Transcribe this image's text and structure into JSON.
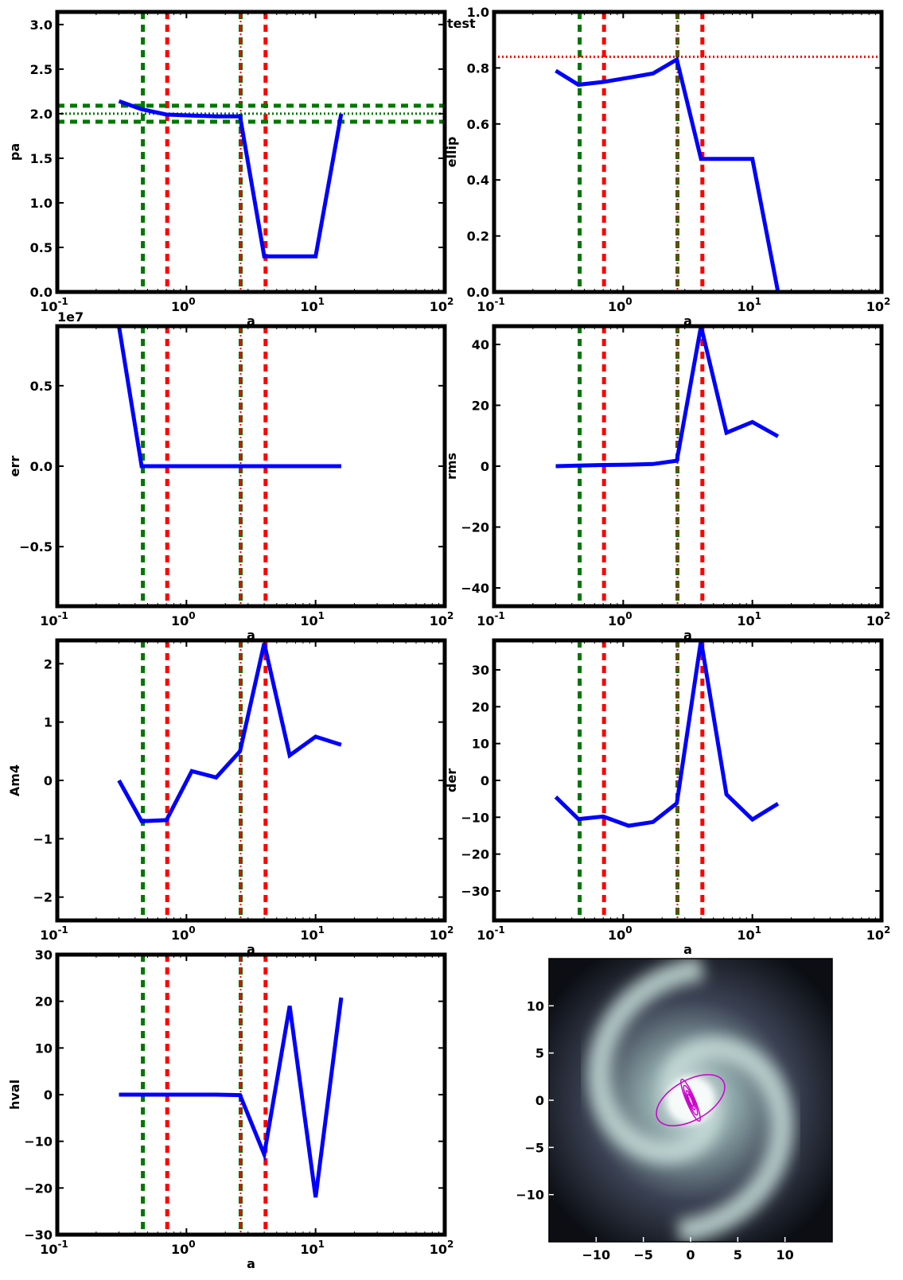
{
  "figure_label": "test",
  "colors": {
    "series": "#0000ff",
    "green_marker": "#007700",
    "red_marker": "#ff0000",
    "ellipse": "#cc00cc",
    "axes": "#000000"
  },
  "chart_data": [
    {
      "id": "pa",
      "type": "line",
      "xscale": "log",
      "xlim": [
        0.1,
        100
      ],
      "ylabel": "pa",
      "xlabel": "a",
      "ylim": [
        0,
        3.14159
      ],
      "yticks": [
        0.0,
        0.5,
        1.0,
        1.5,
        2.0,
        2.5,
        3.0
      ],
      "ytick_labels": [
        "0.0",
        "0.5",
        "1.0",
        "1.5",
        "2.0",
        "2.5",
        "3.0"
      ],
      "x": [
        0.3,
        0.45,
        0.7,
        1.1,
        1.7,
        2.6,
        4.0,
        6.3,
        10.0,
        15.8
      ],
      "y": [
        2.14,
        2.05,
        1.99,
        1.98,
        1.97,
        1.97,
        0.4,
        0.4,
        0.4,
        2.0
      ],
      "hlines": [
        {
          "y": 2.09,
          "color": "green",
          "style": "dashed"
        },
        {
          "y": 1.91,
          "color": "green",
          "style": "dashed"
        },
        {
          "y": 2.0,
          "color": "green",
          "style": "dotted"
        }
      ]
    },
    {
      "id": "ellip",
      "type": "line",
      "xscale": "log",
      "xlim": [
        0.1,
        100
      ],
      "ylabel": "ellip",
      "xlabel": "a",
      "ylim": [
        0,
        1.0
      ],
      "yticks": [
        0.0,
        0.2,
        0.4,
        0.6,
        0.8,
        1.0
      ],
      "ytick_labels": [
        "0.0",
        "0.2",
        "0.4",
        "0.6",
        "0.8",
        "1.0"
      ],
      "x": [
        0.3,
        0.45,
        0.7,
        1.1,
        1.7,
        2.6,
        4.0,
        6.3,
        10.0,
        15.8
      ],
      "y": [
        0.79,
        0.74,
        0.75,
        0.765,
        0.78,
        0.83,
        0.475,
        0.475,
        0.475,
        0.0
      ],
      "hlines": [
        {
          "y": 0.84,
          "color": "red",
          "style": "dotted"
        }
      ]
    },
    {
      "id": "err",
      "type": "line",
      "xscale": "log",
      "xlim": [
        0.1,
        100
      ],
      "ylabel": "err",
      "xlabel": "a",
      "ylim": [
        -0.87,
        0.87
      ],
      "y_offset_label": "1e7",
      "yticks": [
        -0.5,
        0.0,
        0.5
      ],
      "ytick_labels": [
        "−0.5",
        "0.0",
        "0.5"
      ],
      "x": [
        0.3,
        0.45,
        0.7,
        1.1,
        1.7,
        2.6,
        4.0,
        6.3,
        10.0,
        15.8
      ],
      "y": [
        0.87,
        0.0,
        0.0,
        0.0,
        0.0,
        0.0,
        0.0,
        0.0,
        0.0,
        0.0
      ],
      "hlines": []
    },
    {
      "id": "rms",
      "type": "line",
      "xscale": "log",
      "xlim": [
        0.1,
        100
      ],
      "ylabel": "rms",
      "xlabel": "a",
      "ylim": [
        -46,
        46
      ],
      "yticks": [
        -40,
        -20,
        0,
        20,
        40
      ],
      "ytick_labels": [
        "−40",
        "−20",
        "0",
        "20",
        "40"
      ],
      "x": [
        0.3,
        0.45,
        0.7,
        1.1,
        1.7,
        2.6,
        4.0,
        6.3,
        10.0,
        15.8
      ],
      "y": [
        0.0,
        0.2,
        0.4,
        0.5,
        0.7,
        1.8,
        46.0,
        11.0,
        14.5,
        9.8
      ],
      "hlines": []
    },
    {
      "id": "Am4",
      "type": "line",
      "xscale": "log",
      "xlim": [
        0.1,
        100
      ],
      "ylabel": "Am4",
      "xlabel": "a",
      "ylim": [
        -2.4,
        2.4
      ],
      "yticks": [
        -2,
        -1,
        0,
        1,
        2
      ],
      "ytick_labels": [
        "−2",
        "−1",
        "0",
        "1",
        "2"
      ],
      "x": [
        0.3,
        0.45,
        0.7,
        1.1,
        1.7,
        2.6,
        4.0,
        6.3,
        10.0,
        15.8
      ],
      "y": [
        0.0,
        -0.7,
        -0.68,
        0.16,
        0.05,
        0.5,
        2.35,
        0.43,
        0.75,
        0.61
      ],
      "hlines": []
    },
    {
      "id": "der",
      "type": "line",
      "xscale": "log",
      "xlim": [
        0.1,
        100
      ],
      "ylabel": "der",
      "xlabel": "a",
      "ylim": [
        -38,
        38
      ],
      "yticks": [
        -30,
        -20,
        -10,
        0,
        10,
        20,
        30
      ],
      "ytick_labels": [
        "−30",
        "−20",
        "−10",
        "0",
        "10",
        "20",
        "30"
      ],
      "x": [
        0.3,
        0.45,
        0.7,
        1.1,
        1.7,
        2.6,
        4.0,
        6.3,
        10.0,
        15.8
      ],
      "y": [
        -4.5,
        -10.5,
        -9.8,
        -12.3,
        -11.3,
        -6.2,
        38.0,
        -3.8,
        -10.6,
        -6.3
      ],
      "hlines": []
    },
    {
      "id": "hval",
      "type": "line",
      "xscale": "log",
      "xlim": [
        0.1,
        100
      ],
      "ylabel": "hval",
      "xlabel": "a",
      "ylim": [
        -30,
        30
      ],
      "yticks": [
        -30,
        -20,
        -10,
        0,
        10,
        20,
        30
      ],
      "ytick_labels": [
        "−30",
        "−20",
        "−10",
        "0",
        "10",
        "20",
        "30"
      ],
      "x": [
        0.3,
        0.45,
        0.7,
        1.1,
        1.7,
        2.6,
        4.0,
        6.3,
        10.0,
        15.8
      ],
      "y": [
        0.0,
        0.0,
        0.0,
        0.0,
        0.0,
        -0.1,
        -12.8,
        19.0,
        -22.0,
        20.8
      ],
      "hlines": []
    }
  ],
  "vlines": [
    {
      "x": 0.46,
      "color": "green",
      "style": "dashed"
    },
    {
      "x": 0.71,
      "color": "red",
      "style": "dashed"
    },
    {
      "x": 2.63,
      "color": "green",
      "style": "dashed"
    },
    {
      "x": 2.63,
      "color": "red",
      "style": "dashdot"
    },
    {
      "x": 4.1,
      "color": "red",
      "style": "dashed"
    }
  ],
  "xtick_labels": [
    "10",
    "10",
    "10",
    "10"
  ],
  "xtick_exponents": [
    "-1",
    "0",
    "1",
    "2"
  ],
  "image_panel": {
    "type": "heatmap",
    "xlim": [
      -15,
      15
    ],
    "ylim": [
      -15,
      15
    ],
    "xticks": [
      -10,
      -5,
      0,
      5,
      10
    ],
    "xtick_labels": [
      "−10",
      "−5",
      "0",
      "5",
      "10"
    ],
    "yticks": [
      -10,
      -5,
      0,
      5,
      10
    ],
    "ytick_labels": [
      "−10",
      "−5",
      "0",
      "5",
      "10"
    ],
    "colormap": "bone",
    "ellipses": [
      {
        "cx": 0,
        "cy": 0,
        "a": 4.0,
        "b": 2.1,
        "angle_deg": 30
      },
      {
        "cx": 0,
        "cy": 0,
        "a": 2.4,
        "b": 0.45,
        "angle_deg": 113
      },
      {
        "cx": 0,
        "cy": 0,
        "a": 1.7,
        "b": 0.33,
        "angle_deg": 113
      },
      {
        "cx": 0,
        "cy": 0,
        "a": 1.1,
        "b": 0.22,
        "angle_deg": 113
      },
      {
        "cx": 0,
        "cy": 0,
        "a": 0.7,
        "b": 0.14,
        "angle_deg": 113
      }
    ]
  }
}
